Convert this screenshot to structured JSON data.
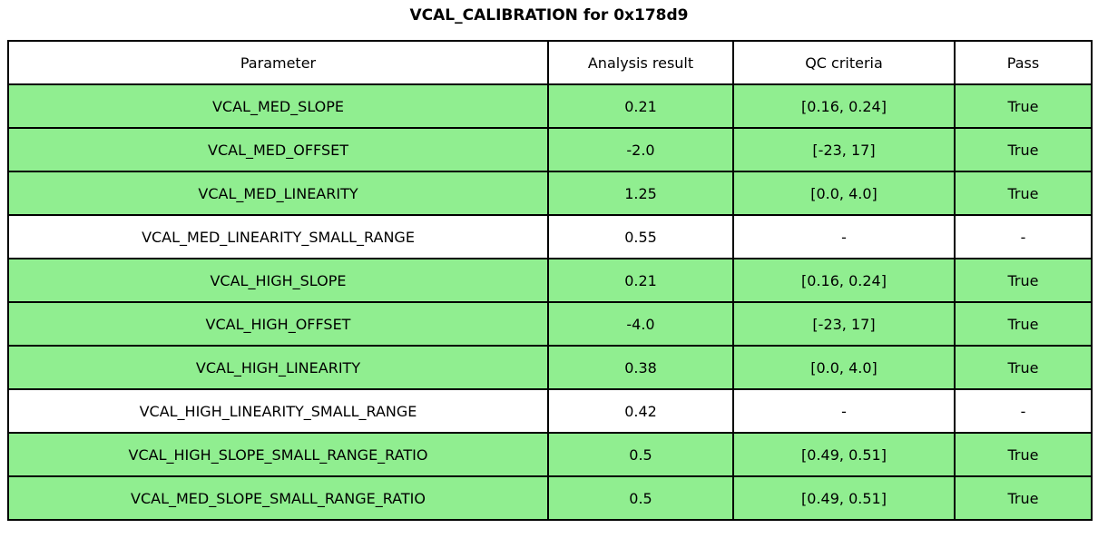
{
  "title": "VCAL_CALIBRATION for 0x178d9",
  "colors": {
    "pass_row_green": "#90EE90",
    "no_criteria_row_white": "#ffffff",
    "border": "#000000",
    "text": "#000000"
  },
  "chart_data": {
    "type": "table",
    "title": "VCAL_CALIBRATION for 0x178d9",
    "columns": [
      "Parameter",
      "Analysis result",
      "QC criteria",
      "Pass"
    ],
    "rows": [
      {
        "parameter": "VCAL_MED_SLOPE",
        "result": "0.21",
        "criteria": "[0.16, 0.24]",
        "pass": "True",
        "highlight": true
      },
      {
        "parameter": "VCAL_MED_OFFSET",
        "result": "-2.0",
        "criteria": "[-23, 17]",
        "pass": "True",
        "highlight": true
      },
      {
        "parameter": "VCAL_MED_LINEARITY",
        "result": "1.25",
        "criteria": "[0.0, 4.0]",
        "pass": "True",
        "highlight": true
      },
      {
        "parameter": "VCAL_MED_LINEARITY_SMALL_RANGE",
        "result": "0.55",
        "criteria": "-",
        "pass": "-",
        "highlight": false
      },
      {
        "parameter": "VCAL_HIGH_SLOPE",
        "result": "0.21",
        "criteria": "[0.16, 0.24]",
        "pass": "True",
        "highlight": true
      },
      {
        "parameter": "VCAL_HIGH_OFFSET",
        "result": "-4.0",
        "criteria": "[-23, 17]",
        "pass": "True",
        "highlight": true
      },
      {
        "parameter": "VCAL_HIGH_LINEARITY",
        "result": "0.38",
        "criteria": "[0.0, 4.0]",
        "pass": "True",
        "highlight": true
      },
      {
        "parameter": "VCAL_HIGH_LINEARITY_SMALL_RANGE",
        "result": "0.42",
        "criteria": "-",
        "pass": "-",
        "highlight": false
      },
      {
        "parameter": "VCAL_HIGH_SLOPE_SMALL_RANGE_RATIO",
        "result": "0.5",
        "criteria": "[0.49, 0.51]",
        "pass": "True",
        "highlight": true
      },
      {
        "parameter": "VCAL_MED_SLOPE_SMALL_RANGE_RATIO",
        "result": "0.5",
        "criteria": "[0.49, 0.51]",
        "pass": "True",
        "highlight": true
      }
    ]
  }
}
